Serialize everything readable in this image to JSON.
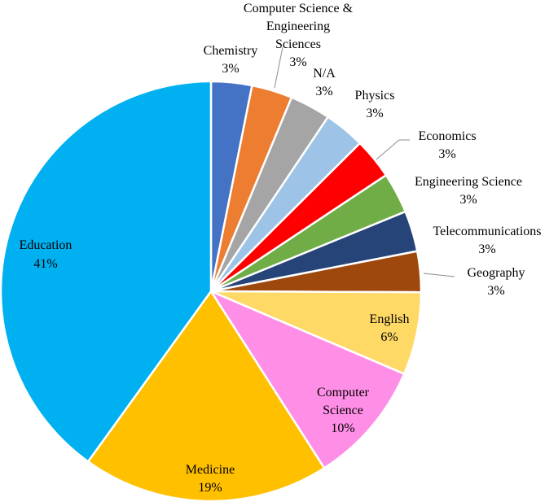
{
  "chart_data": {
    "type": "pie",
    "title": "",
    "slices": [
      {
        "label": "Chemistry",
        "pct_text": "3%",
        "value": 3.2,
        "color": "#4472C4"
      },
      {
        "label": "Computer Science & Engineering Sciences",
        "pct_text": "3%",
        "value": 3.2,
        "color": "#ED7D31"
      },
      {
        "label": "N/A",
        "pct_text": "3%",
        "value": 3.2,
        "color": "#A5A5A5"
      },
      {
        "label": "Physics",
        "pct_text": "3%",
        "value": 3.2,
        "color": "#9DC3E6"
      },
      {
        "label": "Economics",
        "pct_text": "3%",
        "value": 3.2,
        "color": "#FF0000"
      },
      {
        "label": "Engineering Science",
        "pct_text": "3%",
        "value": 3.2,
        "color": "#70AD47"
      },
      {
        "label": "Telecommunications",
        "pct_text": "3%",
        "value": 3.2,
        "color": "#264478"
      },
      {
        "label": "Geography",
        "pct_text": "3%",
        "value": 3.2,
        "color": "#9E480E"
      },
      {
        "label": "English",
        "pct_text": "6%",
        "value": 6.5,
        "color": "#FFD966"
      },
      {
        "label": "Computer Science",
        "pct_text": "10%",
        "value": 9.7,
        "color": "#FF8FE6"
      },
      {
        "label": "Medicine",
        "pct_text": "19%",
        "value": 19.4,
        "color": "#FFC000"
      },
      {
        "label": "Education",
        "pct_text": "41%",
        "value": 40.9,
        "color": "#00B0F0"
      }
    ]
  }
}
